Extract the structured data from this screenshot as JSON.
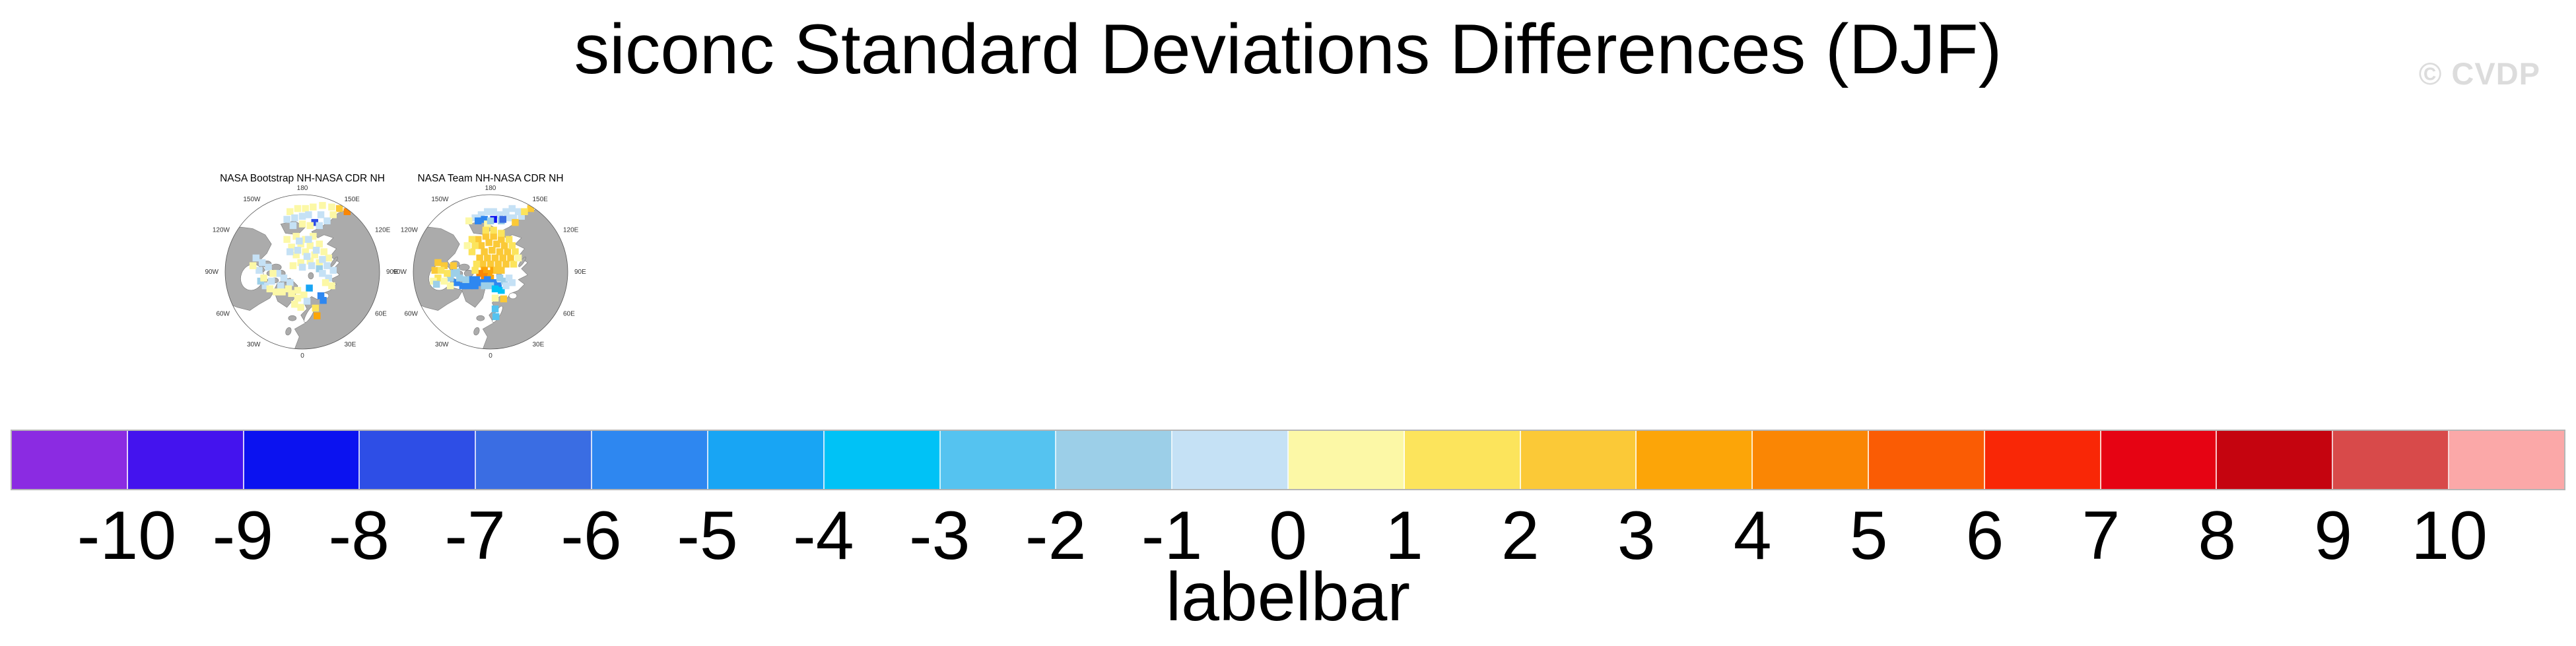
{
  "page": {
    "title": "siconc Standard Deviations Differences (DJF)",
    "watermark": "© CVDP",
    "background": "#ffffff"
  },
  "chart_data": {
    "type": "heatmap",
    "subtype": "polar-stereographic-difference-maps",
    "title": "siconc Standard Deviations Differences (DJF)",
    "variable": "siconc",
    "season": "DJF",
    "colorbar": {
      "label": "labelbar",
      "orientation": "horizontal",
      "tick_labels": [
        "-10",
        "-9",
        "-8",
        "-7",
        "-6",
        "-5",
        "-4",
        "-3",
        "-2",
        "-1",
        "0",
        "1",
        "2",
        "3",
        "4",
        "5",
        "6",
        "7",
        "8",
        "9",
        "10"
      ],
      "levels": [
        -10,
        -9,
        -8,
        -7,
        -6,
        -5,
        -4,
        -3,
        -2,
        -1,
        0,
        1,
        2,
        3,
        4,
        5,
        6,
        7,
        8,
        9,
        10
      ],
      "colors": [
        "#8B2BE2",
        "#4413EE",
        "#0B12F0",
        "#2E4EE6",
        "#3A6DE3",
        "#2E87F0",
        "#18A5F4",
        "#00C2F6",
        "#55C3F0",
        "#9CCFE8",
        "#C5E1F5",
        "#FCF8A6",
        "#FCE45C",
        "#FBC937",
        "#FCA508",
        "#FA8604",
        "#FA5C04",
        "#F92706",
        "#E60313",
        "#C5040F",
        "#D84A4A",
        "#FBA8A8"
      ]
    },
    "maps": {
      "projection": "NH polar stereographic",
      "land_color": "#ABABAB",
      "ocean_color": "#FFFFFF",
      "coast_color": "#7A7A7A",
      "outline_color": "#555555",
      "lon_labels": [
        {
          "t": "180",
          "a": 0
        },
        {
          "t": "150E",
          "a": 30
        },
        {
          "t": "120E",
          "a": 60
        },
        {
          "t": "90E",
          "a": 90
        },
        {
          "t": "60E",
          "a": 120
        },
        {
          "t": "30E",
          "a": 150
        },
        {
          "t": "0",
          "a": 180
        },
        {
          "t": "30W",
          "a": 210
        },
        {
          "t": "60W",
          "a": 240
        },
        {
          "t": "90W",
          "a": 270
        },
        {
          "t": "120W",
          "a": 300
        },
        {
          "t": "150W",
          "a": 330
        }
      ]
    },
    "panels": [
      {
        "title": "NASA Bootstrap NH-NASA CDR NH",
        "summary": "Scattered weak differences over the Arctic Ocean: pale yellow (0 to +1) and pale blue (-1 to 0) cells; isolated strong blue (about -8) cell near the East Siberian Sea; orange (+4 to +5) cells near the Chukchi coast and in the Baltic Sea; light blue cells in Hudson Bay and the Kara/Barents seas.",
        "cells": [
          [
            0.42,
            0.11,
            0.5
          ],
          [
            0.47,
            0.09,
            0.5
          ],
          [
            0.52,
            0.09,
            0.5
          ],
          [
            0.57,
            0.08,
            0.5
          ],
          [
            0.63,
            0.07,
            0.5
          ],
          [
            0.69,
            0.08,
            0.5
          ],
          [
            0.74,
            0.09,
            2.5
          ],
          [
            0.79,
            0.11,
            4.5
          ],
          [
            0.7,
            0.13,
            0.5
          ],
          [
            0.4,
            0.16,
            -0.5
          ],
          [
            0.45,
            0.15,
            -0.5
          ],
          [
            0.5,
            0.14,
            -0.5
          ],
          [
            0.54,
            0.13,
            -0.5
          ],
          [
            0.58,
            0.18,
            -7.5
          ],
          [
            0.62,
            0.13,
            -0.5
          ],
          [
            0.66,
            0.17,
            -0.5
          ],
          [
            0.61,
            0.2,
            -0.5
          ],
          [
            0.55,
            0.2,
            0.5
          ],
          [
            0.5,
            0.19,
            0.5
          ],
          [
            0.44,
            0.2,
            -0.5
          ],
          [
            0.4,
            0.29,
            0.5
          ],
          [
            0.46,
            0.27,
            0.5
          ],
          [
            0.52,
            0.29,
            0.5
          ],
          [
            0.57,
            0.27,
            0.5
          ],
          [
            0.43,
            0.34,
            0.5
          ],
          [
            0.49,
            0.32,
            0.5
          ],
          [
            0.55,
            0.33,
            0.5
          ],
          [
            0.61,
            0.32,
            0.5
          ],
          [
            0.46,
            0.39,
            0.5
          ],
          [
            0.52,
            0.37,
            0.5
          ],
          [
            0.58,
            0.39,
            0.5
          ],
          [
            0.64,
            0.37,
            0.5
          ],
          [
            0.49,
            0.44,
            0.5
          ],
          [
            0.55,
            0.43,
            0.5
          ],
          [
            0.61,
            0.44,
            0.5
          ],
          [
            0.44,
            0.46,
            0.5
          ],
          [
            0.67,
            0.41,
            0.5
          ],
          [
            0.48,
            0.3,
            -0.5
          ],
          [
            0.54,
            0.29,
            -0.5
          ],
          [
            0.42,
            0.37,
            -0.5
          ],
          [
            0.47,
            0.36,
            -0.5
          ],
          [
            0.53,
            0.4,
            -0.5
          ],
          [
            0.59,
            0.36,
            -0.5
          ],
          [
            0.63,
            0.42,
            -0.5
          ],
          [
            0.56,
            0.46,
            -0.5
          ],
          [
            0.5,
            0.47,
            -0.5
          ],
          [
            0.66,
            0.46,
            -0.5
          ],
          [
            0.61,
            0.48,
            -1.5
          ],
          [
            0.63,
            0.51,
            -0.5
          ],
          [
            0.67,
            0.54,
            -0.5
          ],
          [
            0.7,
            0.49,
            -0.5
          ],
          [
            0.65,
            0.57,
            0.5
          ],
          [
            0.69,
            0.59,
            0.5
          ],
          [
            0.62,
            0.655,
            -5.5
          ],
          [
            0.635,
            0.685,
            -5.5
          ],
          [
            0.545,
            0.605,
            -4.5
          ],
          [
            0.2,
            0.41,
            -0.5
          ],
          [
            0.24,
            0.44,
            -0.5
          ],
          [
            0.28,
            0.47,
            -0.5
          ],
          [
            0.22,
            0.49,
            -0.5
          ],
          [
            0.34,
            0.51,
            -0.5
          ],
          [
            0.38,
            0.54,
            -0.5
          ],
          [
            0.3,
            0.56,
            -0.5
          ],
          [
            0.26,
            0.59,
            -0.5
          ],
          [
            0.42,
            0.57,
            -0.5
          ],
          [
            0.36,
            0.59,
            -0.5
          ],
          [
            0.23,
            0.56,
            -1.5
          ],
          [
            0.25,
            0.54,
            0.5
          ],
          [
            0.29,
            0.61,
            0.5
          ],
          [
            0.33,
            0.63,
            0.5
          ],
          [
            0.37,
            0.63,
            0.5
          ],
          [
            0.41,
            0.61,
            0.5
          ],
          [
            0.31,
            0.51,
            0.5
          ],
          [
            0.18,
            0.46,
            0.5
          ],
          [
            0.43,
            0.64,
            0.5
          ],
          [
            0.47,
            0.62,
            0.5
          ],
          [
            0.47,
            0.67,
            0.5
          ],
          [
            0.51,
            0.65,
            0.5
          ],
          [
            0.45,
            0.71,
            0.5
          ],
          [
            0.49,
            0.73,
            0.5
          ],
          [
            0.53,
            0.69,
            -0.5
          ],
          [
            0.585,
            0.735,
            1.5
          ],
          [
            0.595,
            0.785,
            3.5
          ]
        ]
      },
      {
        "title": "NASA Team NH-NASA CDR NH",
        "summary": "Broad positive differences (gold/orange, +1 to +5) across the central Arctic Ocean; band of negative differences (blues, -2 to -6) from the Canadian Archipelago through Baffin Bay and along the ice edge; deep blue (about -9) cell near the East Siberian Sea; cyan cells in the Baltic; gold cells near Hudson Bay.",
        "cells": [
          [
            0.4,
            0.15,
            -0.5
          ],
          [
            0.44,
            0.13,
            -0.5
          ],
          [
            0.48,
            0.11,
            -0.5
          ],
          [
            0.52,
            0.11,
            -0.5
          ],
          [
            0.56,
            0.13,
            -0.5
          ],
          [
            0.6,
            0.11,
            -0.5
          ],
          [
            0.64,
            0.09,
            -0.5
          ],
          [
            0.68,
            0.11,
            -0.5
          ],
          [
            0.57,
            0.17,
            -1.5
          ],
          [
            0.61,
            0.15,
            -0.5
          ],
          [
            0.65,
            0.15,
            -0.5
          ],
          [
            0.7,
            0.14,
            -0.5
          ],
          [
            0.42,
            0.17,
            -5.5
          ],
          [
            0.46,
            0.16,
            -5.5
          ],
          [
            0.52,
            0.16,
            -8.5
          ],
          [
            0.58,
            0.16,
            -6.5
          ],
          [
            0.36,
            0.17,
            0.5
          ],
          [
            0.48,
            0.19,
            0.5
          ],
          [
            0.5,
            0.17,
            -1.5
          ],
          [
            0.66,
            0.18,
            2.5
          ],
          [
            0.76,
            0.09,
            2.5
          ],
          [
            0.72,
            0.11,
            1.5
          ],
          [
            0.42,
            0.29,
            2.5
          ],
          [
            0.47,
            0.27,
            2.5
          ],
          [
            0.52,
            0.27,
            2.5
          ],
          [
            0.57,
            0.29,
            2.5
          ],
          [
            0.44,
            0.33,
            2.5
          ],
          [
            0.49,
            0.31,
            2.5
          ],
          [
            0.54,
            0.32,
            2.5
          ],
          [
            0.59,
            0.33,
            2.5
          ],
          [
            0.46,
            0.37,
            2.5
          ],
          [
            0.51,
            0.36,
            2.5
          ],
          [
            0.56,
            0.37,
            2.5
          ],
          [
            0.61,
            0.37,
            2.5
          ],
          [
            0.48,
            0.41,
            2.5
          ],
          [
            0.53,
            0.41,
            2.5
          ],
          [
            0.58,
            0.41,
            2.5
          ],
          [
            0.43,
            0.41,
            2.5
          ],
          [
            0.5,
            0.45,
            2.5
          ],
          [
            0.55,
            0.45,
            2.5
          ],
          [
            0.6,
            0.45,
            2.5
          ],
          [
            0.63,
            0.41,
            2.5
          ],
          [
            0.45,
            0.45,
            2.5
          ],
          [
            0.38,
            0.29,
            1.5
          ],
          [
            0.4,
            0.33,
            1.5
          ],
          [
            0.38,
            0.37,
            1.5
          ],
          [
            0.41,
            0.45,
            1.5
          ],
          [
            0.64,
            0.33,
            1.5
          ],
          [
            0.66,
            0.37,
            1.5
          ],
          [
            0.62,
            0.29,
            1.5
          ],
          [
            0.65,
            0.45,
            1.5
          ],
          [
            0.57,
            0.25,
            1.5
          ],
          [
            0.52,
            0.23,
            1.5
          ],
          [
            0.47,
            0.23,
            1.5
          ],
          [
            0.35,
            0.33,
            0.5
          ],
          [
            0.68,
            0.41,
            0.5
          ],
          [
            0.46,
            0.49,
            3.5
          ],
          [
            0.49,
            0.51,
            3.5
          ],
          [
            0.52,
            0.49,
            3.5
          ],
          [
            0.43,
            0.51,
            4.5
          ],
          [
            0.46,
            0.53,
            4.5
          ],
          [
            0.5,
            0.54,
            3.5
          ],
          [
            0.54,
            0.49,
            2.5
          ],
          [
            0.57,
            0.49,
            2.5
          ],
          [
            0.4,
            0.49,
            1.5
          ],
          [
            0.28,
            0.57,
            -5.5
          ],
          [
            0.32,
            0.59,
            -5.5
          ],
          [
            0.36,
            0.59,
            -5.5
          ],
          [
            0.4,
            0.59,
            -5.5
          ],
          [
            0.44,
            0.57,
            -5.5
          ],
          [
            0.48,
            0.55,
            -5.5
          ],
          [
            0.52,
            0.57,
            -5.5
          ],
          [
            0.55,
            0.59,
            -5.5
          ],
          [
            0.37,
            0.55,
            -5.5
          ],
          [
            0.41,
            0.55,
            -5.5
          ],
          [
            0.3,
            0.54,
            -1.5
          ],
          [
            0.34,
            0.55,
            -1.5
          ],
          [
            0.46,
            0.59,
            -1.5
          ],
          [
            0.5,
            0.59,
            -1.5
          ],
          [
            0.56,
            0.54,
            -1.5
          ],
          [
            0.59,
            0.56,
            -1.5
          ],
          [
            0.24,
            0.54,
            -1.5
          ],
          [
            0.26,
            0.51,
            -1.5
          ],
          [
            0.28,
            0.5,
            -1.5
          ],
          [
            0.53,
            0.61,
            -3.5
          ],
          [
            0.57,
            0.62,
            -3.5
          ],
          [
            0.6,
            0.59,
            -0.5
          ],
          [
            0.62,
            0.54,
            -0.5
          ],
          [
            0.64,
            0.57,
            -0.5
          ],
          [
            0.16,
            0.44,
            2.5
          ],
          [
            0.2,
            0.46,
            2.5
          ],
          [
            0.14,
            0.49,
            2.5
          ],
          [
            0.26,
            0.46,
            2.5
          ],
          [
            0.18,
            0.49,
            1.5
          ],
          [
            0.22,
            0.51,
            1.5
          ],
          [
            0.16,
            0.54,
            1.5
          ],
          [
            0.2,
            0.56,
            0.5
          ],
          [
            0.24,
            0.59,
            0.5
          ],
          [
            0.13,
            0.56,
            0.5
          ],
          [
            0.15,
            0.58,
            -1.5
          ],
          [
            0.53,
            0.74,
            -2.5
          ],
          [
            0.535,
            0.79,
            -2.5
          ],
          [
            0.585,
            0.675,
            2.5
          ],
          [
            0.53,
            0.67,
            0.5
          ]
        ]
      }
    ]
  },
  "layout_note": "two small NH polar maps upper-left, full-width 22-segment labelbar below"
}
